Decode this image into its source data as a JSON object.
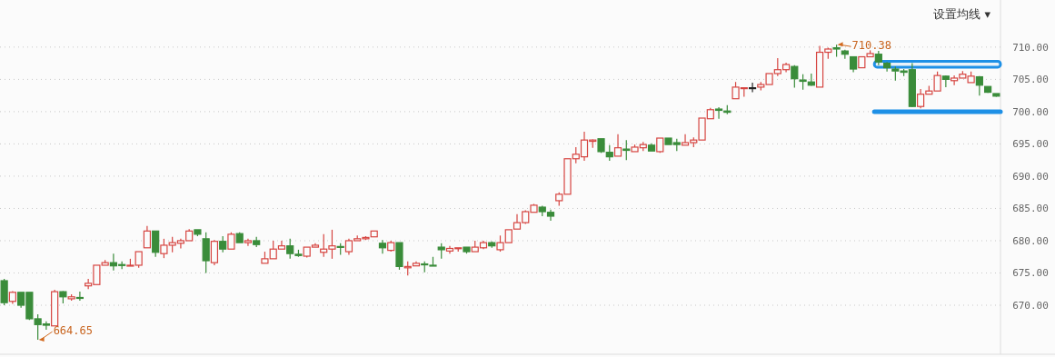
{
  "chart_data": {
    "type": "candlestick",
    "categories": [
      null,
      null,
      null,
      null,
      null,
      null,
      null,
      null,
      null,
      null,
      null,
      null,
      null,
      null,
      null,
      null,
      null,
      null,
      null,
      null,
      null,
      null,
      null,
      null,
      null,
      null,
      null,
      null,
      null,
      null,
      null,
      null,
      null,
      null,
      null,
      null,
      null,
      null,
      null,
      null,
      null,
      null,
      null,
      null,
      null,
      null,
      null,
      null,
      null,
      null,
      null,
      null,
      null,
      null,
      null,
      null,
      null,
      null,
      null,
      null,
      null,
      null,
      null,
      null,
      null,
      null,
      null,
      null,
      null,
      null,
      null,
      null,
      null,
      null,
      null,
      null,
      null,
      null,
      null,
      null,
      null,
      null,
      null,
      null,
      null,
      null,
      null,
      null,
      null,
      null,
      null,
      null,
      null,
      null,
      null,
      null,
      null,
      null,
      null,
      null,
      null,
      null,
      null,
      null,
      null,
      null,
      null,
      null,
      null,
      null,
      null,
      null,
      null,
      null,
      null,
      null,
      null,
      null,
      null
    ],
    "ohlc": [
      [
        673.8,
        674.1,
        670.0,
        670.4
      ],
      [
        670.6,
        672.2,
        670.2,
        672.0
      ],
      [
        672.0,
        672.0,
        669.6,
        670.0
      ],
      [
        672.0,
        672.0,
        667.7,
        667.9
      ],
      [
        667.9,
        668.6,
        664.65,
        667.0
      ],
      [
        667.1,
        667.5,
        666.2,
        666.9
      ],
      [
        666.8,
        672.4,
        666.8,
        672.1
      ],
      [
        672.1,
        672.2,
        670.3,
        671.3
      ],
      [
        671.0,
        671.7,
        670.7,
        671.3
      ],
      [
        671.2,
        672.1,
        670.7,
        671.1
      ],
      [
        673.0,
        674.1,
        672.5,
        673.4
      ],
      [
        673.2,
        676.2,
        673.2,
        676.2
      ],
      [
        676.2,
        677.0,
        676.2,
        676.6
      ],
      [
        676.6,
        678.0,
        675.4,
        676.1
      ],
      [
        676.3,
        676.8,
        675.6,
        676.2
      ],
      [
        676.1,
        677.2,
        676.1,
        676.2
      ],
      [
        676.2,
        678.3,
        675.8,
        678.3
      ],
      [
        678.9,
        682.3,
        678.9,
        681.5
      ],
      [
        681.5,
        681.5,
        677.5,
        678.2
      ],
      [
        678.0,
        680.3,
        677.3,
        679.3
      ],
      [
        679.3,
        680.6,
        678.2,
        679.7
      ],
      [
        679.6,
        680.3,
        678.8,
        680.0
      ],
      [
        680.0,
        681.8,
        680.0,
        681.5
      ],
      [
        681.7,
        681.7,
        680.7,
        681.0
      ],
      [
        680.3,
        681.3,
        675.0,
        676.9
      ],
      [
        676.6,
        680.1,
        676.2,
        679.9
      ],
      [
        679.9,
        680.7,
        678.2,
        678.7
      ],
      [
        678.7,
        681.3,
        678.7,
        681.0
      ],
      [
        681.1,
        681.3,
        679.7,
        679.7
      ],
      [
        679.7,
        680.3,
        679.2,
        680.0
      ],
      [
        680.0,
        680.6,
        679.0,
        679.4
      ],
      [
        676.5,
        678.3,
        676.5,
        677.2
      ],
      [
        677.2,
        680.0,
        677.2,
        678.7
      ],
      [
        678.7,
        680.0,
        678.7,
        679.2
      ],
      [
        679.2,
        680.3,
        677.2,
        678.0
      ],
      [
        677.9,
        678.6,
        677.5,
        677.7
      ],
      [
        677.6,
        679.0,
        677.4,
        679.0
      ],
      [
        679.0,
        679.6,
        679.0,
        679.3
      ],
      [
        678.2,
        681.0,
        677.5,
        678.7
      ],
      [
        678.7,
        681.7,
        677.2,
        679.2
      ],
      [
        679.1,
        679.6,
        677.8,
        679.0
      ],
      [
        678.3,
        680.3,
        677.8,
        680.0
      ],
      [
        680.0,
        680.8,
        680.0,
        680.3
      ],
      [
        680.3,
        680.7,
        680.1,
        680.5
      ],
      [
        680.6,
        681.5,
        680.6,
        681.5
      ],
      [
        679.6,
        680.1,
        678.0,
        678.9
      ],
      [
        678.5,
        680.0,
        678.3,
        679.7
      ],
      [
        679.7,
        679.7,
        675.5,
        676.0
      ],
      [
        675.8,
        676.8,
        674.6,
        676.0
      ],
      [
        676.1,
        676.8,
        676.1,
        676.5
      ],
      [
        676.4,
        676.8,
        675.1,
        676.3
      ],
      [
        676.2,
        677.5,
        676.1,
        676.1
      ],
      [
        679.0,
        679.6,
        677.2,
        678.6
      ],
      [
        678.4,
        679.2,
        678.0,
        678.8
      ],
      [
        678.8,
        678.9,
        678.3,
        678.9
      ],
      [
        679.0,
        679.0,
        678.0,
        678.3
      ],
      [
        678.3,
        680.0,
        678.3,
        679.0
      ],
      [
        678.9,
        680.0,
        678.7,
        679.7
      ],
      [
        679.7,
        679.9,
        678.9,
        679.2
      ],
      [
        678.6,
        680.8,
        678.3,
        679.7
      ],
      [
        679.7,
        681.7,
        679.7,
        681.7
      ],
      [
        681.8,
        684.1,
        681.8,
        682.8
      ],
      [
        682.8,
        684.7,
        682.6,
        684.5
      ],
      [
        684.4,
        685.7,
        684.4,
        685.5
      ],
      [
        685.2,
        685.4,
        683.8,
        684.5
      ],
      [
        684.4,
        684.8,
        683.1,
        683.8
      ],
      [
        686.2,
        687.5,
        685.4,
        687.2
      ],
      [
        687.2,
        692.7,
        687.2,
        692.7
      ],
      [
        692.7,
        694.5,
        692.0,
        693.4
      ],
      [
        693.0,
        696.9,
        692.4,
        695.6
      ],
      [
        695.4,
        695.7,
        694.4,
        695.6
      ],
      [
        695.8,
        695.8,
        693.6,
        693.8
      ],
      [
        693.7,
        694.8,
        692.4,
        693.0
      ],
      [
        693.1,
        696.5,
        693.1,
        694.4
      ],
      [
        694.2,
        695.6,
        692.5,
        694.0
      ],
      [
        693.8,
        694.9,
        693.8,
        694.5
      ],
      [
        694.4,
        695.3,
        693.9,
        694.9
      ],
      [
        694.8,
        695.1,
        693.9,
        693.9
      ],
      [
        693.8,
        695.9,
        693.6,
        695.9
      ],
      [
        695.9,
        695.9,
        694.9,
        694.9
      ],
      [
        695.2,
        695.8,
        693.9,
        694.9
      ],
      [
        694.8,
        696.5,
        694.8,
        695.2
      ],
      [
        695.2,
        696.0,
        694.5,
        695.6
      ],
      [
        695.6,
        699.0,
        695.6,
        699.0
      ],
      [
        698.9,
        700.6,
        698.9,
        700.3
      ],
      [
        700.4,
        700.7,
        698.9,
        700.2
      ],
      [
        700.1,
        701.0,
        699.6,
        699.9
      ],
      [
        702.0,
        704.6,
        702.0,
        703.8
      ],
      [
        703.6,
        703.8,
        702.3,
        703.7
      ],
      [
        703.7,
        704.5,
        703.0,
        703.7
      ],
      [
        703.8,
        704.6,
        703.3,
        704.2
      ],
      [
        704.2,
        705.9,
        704.2,
        705.9
      ],
      [
        705.9,
        708.3,
        705.5,
        706.5
      ],
      [
        706.5,
        707.6,
        706.1,
        707.3
      ],
      [
        707.0,
        707.2,
        703.7,
        705.1
      ],
      [
        704.9,
        705.8,
        703.4,
        704.7
      ],
      [
        704.6,
        705.9,
        704.0,
        704.1
      ],
      [
        703.8,
        710.2,
        703.8,
        709.2
      ],
      [
        709.2,
        709.9,
        708.2,
        709.7
      ],
      [
        709.9,
        710.38,
        708.5,
        709.7
      ],
      [
        709.4,
        709.6,
        708.2,
        708.9
      ],
      [
        708.5,
        708.5,
        706.1,
        706.6
      ],
      [
        706.8,
        708.5,
        706.8,
        708.5
      ],
      [
        708.5,
        709.5,
        708.5,
        709.0
      ],
      [
        708.9,
        709.4,
        707.2,
        707.7
      ],
      [
        707.5,
        707.7,
        706.2,
        706.8
      ],
      [
        706.6,
        707.0,
        704.8,
        706.3
      ],
      [
        706.3,
        706.6,
        705.5,
        706.1
      ],
      [
        706.5,
        707.5,
        700.7,
        700.8
      ],
      [
        700.8,
        703.5,
        700.5,
        702.7
      ],
      [
        702.7,
        704.0,
        702.7,
        703.2
      ],
      [
        703.2,
        706.2,
        703.2,
        705.6
      ],
      [
        705.5,
        705.6,
        703.8,
        705.0
      ],
      [
        704.8,
        705.6,
        704.1,
        705.2
      ],
      [
        705.2,
        706.3,
        705.2,
        705.8
      ],
      [
        704.5,
        706.2,
        704.5,
        705.5
      ],
      [
        705.4,
        705.5,
        702.5,
        704.1
      ],
      [
        703.9,
        703.9,
        702.9,
        703.0
      ],
      [
        702.8,
        702.8,
        702.3,
        702.4
      ]
    ],
    "colors": [
      "#3a8c3a",
      "#d64541",
      "#3a8c3a",
      "#3a8c3a",
      "#3a8c3a",
      "#3a8c3a",
      "#d64541",
      "#3a8c3a",
      "#d64541",
      "#3a8c3a",
      "#d64541",
      "#d64541",
      "#d64541",
      "#3a8c3a",
      "#3a8c3a",
      "#d64541",
      "#d64541",
      "#d64541",
      "#3a8c3a",
      "#d64541",
      "#d64541",
      "#d64541",
      "#d64541",
      "#3a8c3a",
      "#3a8c3a",
      "#d64541",
      "#3a8c3a",
      "#d64541",
      "#3a8c3a",
      "#d64541",
      "#3a8c3a",
      "#d64541",
      "#d64541",
      "#d64541",
      "#3a8c3a",
      "#3a8c3a",
      "#d64541",
      "#d64541",
      "#d64541",
      "#d64541",
      "#3a8c3a",
      "#d64541",
      "#d64541",
      "#d64541",
      "#d64541",
      "#3a8c3a",
      "#d64541",
      "#3a8c3a",
      "#d64541",
      "#d64541",
      "#3a8c3a",
      "#3a8c3a",
      "#3a8c3a",
      "#d64541",
      "#d64541",
      "#3a8c3a",
      "#d64541",
      "#d64541",
      "#3a8c3a",
      "#d64541",
      "#d64541",
      "#d64541",
      "#d64541",
      "#d64541",
      "#3a8c3a",
      "#3a8c3a",
      "#d64541",
      "#d64541",
      "#d64541",
      "#d64541",
      "#d64541",
      "#3a8c3a",
      "#3a8c3a",
      "#d64541",
      "#3a8c3a",
      "#d64541",
      "#d64541",
      "#3a8c3a",
      "#d64541",
      "#3a8c3a",
      "#3a8c3a",
      "#d64541",
      "#d64541",
      "#d64541",
      "#d64541",
      "#3a8c3a",
      "#3a8c3a",
      "#d64541",
      "#d64541",
      "#222222",
      "#d64541",
      "#d64541",
      "#d64541",
      "#d64541",
      "#3a8c3a",
      "#3a8c3a",
      "#3a8c3a",
      "#d64541",
      "#d64541",
      "#3a8c3a",
      "#3a8c3a",
      "#3a8c3a",
      "#d64541",
      "#d64541",
      "#3a8c3a",
      "#3a8c3a",
      "#3a8c3a",
      "#3a8c3a",
      "#3a8c3a",
      "#d64541",
      "#d64541",
      "#d64541",
      "#3a8c3a",
      "#d64541",
      "#d64541",
      "#d64541",
      "#3a8c3a",
      "#3a8c3a",
      "#3a8c3a"
    ],
    "ylim": [
      662.4,
      717.3
    ],
    "yticks": [
      {
        "value": 670,
        "label": "670.00"
      },
      {
        "value": 675,
        "label": "675.00"
      },
      {
        "value": 680,
        "label": "680.00"
      },
      {
        "value": 685,
        "label": "685.00"
      },
      {
        "value": 690,
        "label": "690.00"
      },
      {
        "value": 695,
        "label": "695.00"
      },
      {
        "value": 700,
        "label": "700.00"
      },
      {
        "value": 705,
        "label": "705.00"
      },
      {
        "value": 710,
        "label": "710.00"
      }
    ],
    "grid": "y",
    "tick_labels": "y",
    "ref_lines": [
      {
        "axis": "y",
        "value": 700,
        "color": "#1e90e6"
      }
    ],
    "bands": [
      {
        "axis": "y",
        "from": 706.9,
        "to": 707.8,
        "color": "#1e90e6"
      }
    ],
    "annotations": [
      "设置均线 ▾",
      "710.38",
      "664.65"
    ]
  }
}
